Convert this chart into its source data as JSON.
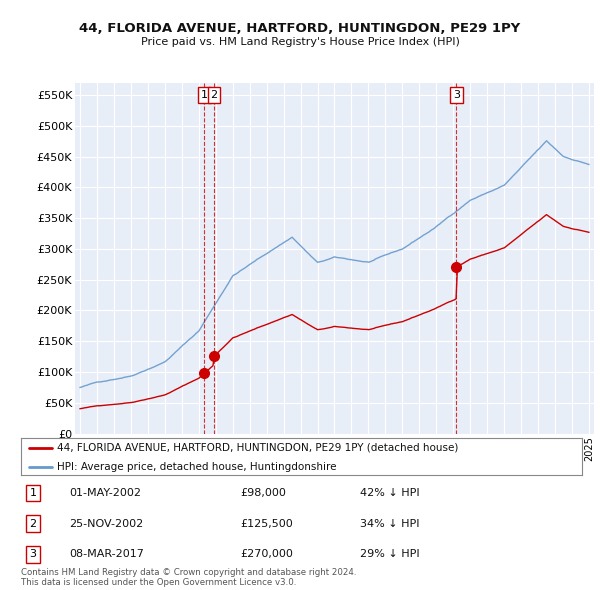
{
  "title": "44, FLORIDA AVENUE, HARTFORD, HUNTINGDON, PE29 1PY",
  "subtitle": "Price paid vs. HM Land Registry's House Price Index (HPI)",
  "ylabel_ticks": [
    "£0",
    "£50K",
    "£100K",
    "£150K",
    "£200K",
    "£250K",
    "£300K",
    "£350K",
    "£400K",
    "£450K",
    "£500K",
    "£550K"
  ],
  "ytick_values": [
    0,
    50000,
    100000,
    150000,
    200000,
    250000,
    300000,
    350000,
    400000,
    450000,
    500000,
    550000
  ],
  "ylim": [
    0,
    570000
  ],
  "sale_dates_num": [
    2002.33,
    2002.9,
    2017.18
  ],
  "sale_prices": [
    98000,
    125500,
    270000
  ],
  "sale_labels": [
    "1",
    "2",
    "3"
  ],
  "transactions": [
    {
      "num": "1",
      "date": "01-MAY-2002",
      "price": "£98,000",
      "hpi_text": "42% ↓ HPI"
    },
    {
      "num": "2",
      "date": "25-NOV-2002",
      "price": "£125,500",
      "hpi_text": "34% ↓ HPI"
    },
    {
      "num": "3",
      "date": "08-MAR-2017",
      "price": "£270,000",
      "hpi_text": "29% ↓ HPI"
    }
  ],
  "legend_property_label": "44, FLORIDA AVENUE, HARTFORD, HUNTINGDON, PE29 1PY (detached house)",
  "legend_hpi_label": "HPI: Average price, detached house, Huntingdonshire",
  "property_color": "#cc0000",
  "hpi_color": "#6699cc",
  "vline_color": "#cc0000",
  "footnote": "Contains HM Land Registry data © Crown copyright and database right 2024.\nThis data is licensed under the Open Government Licence v3.0.",
  "background_color": "#e8eef8",
  "grid_color": "#ffffff"
}
